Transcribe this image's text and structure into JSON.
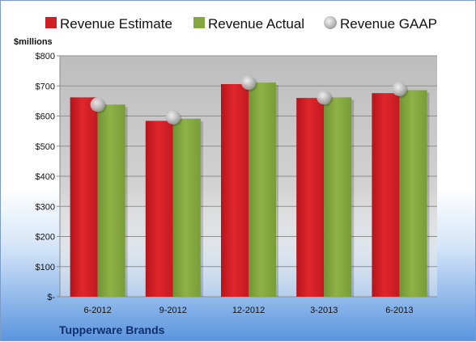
{
  "chart_data": {
    "type": "bar",
    "company": "Tupperware Brands",
    "ylabel": "$millions",
    "categories": [
      "6-2012",
      "9-2012",
      "12-2012",
      "3-2013",
      "6-2013"
    ],
    "series": [
      {
        "name": "Revenue Estimate",
        "kind": "bar",
        "color": "#d11f26",
        "values": [
          662,
          584,
          706,
          660,
          676
        ]
      },
      {
        "name": "Revenue Actual",
        "kind": "bar",
        "color": "#82a83e",
        "values": [
          638,
          591,
          711,
          662,
          686
        ]
      },
      {
        "name": "Revenue GAAP",
        "kind": "marker",
        "color": "#b4b4b4",
        "values": [
          638,
          596,
          711,
          662,
          690
        ]
      }
    ],
    "ylim": [
      0,
      800
    ],
    "yticks": [
      0,
      100,
      200,
      300,
      400,
      500,
      600,
      700,
      800
    ],
    "ytick_labels": [
      "$-",
      "$100",
      "$200",
      "$300",
      "$400",
      "$500",
      "$600",
      "$700",
      "$800"
    ],
    "grid": true,
    "legend_position": "top"
  }
}
